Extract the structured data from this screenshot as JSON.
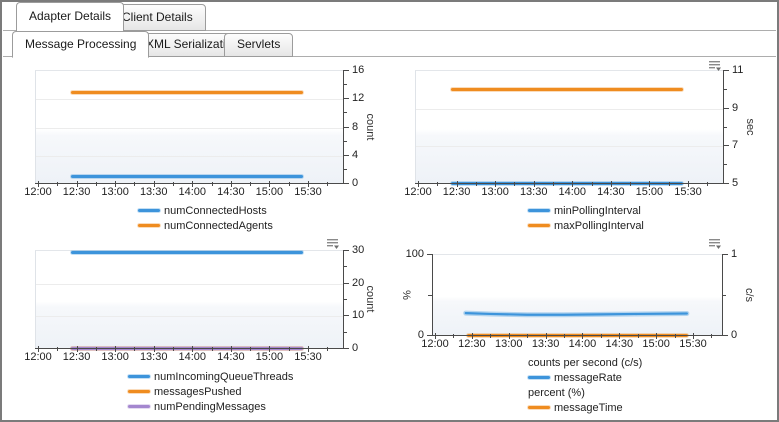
{
  "tabs_primary": {
    "items": [
      {
        "label": "Adapter Details",
        "active": true
      },
      {
        "label": "Client Details",
        "active": false
      }
    ]
  },
  "tabs_secondary": {
    "items": [
      {
        "label": "Message Processing",
        "active": true
      },
      {
        "label": "XML Serialization",
        "active": false
      },
      {
        "label": "Servlets",
        "active": false
      }
    ]
  },
  "colors": {
    "blue": "#3d94db",
    "orange": "#ef8c20",
    "purple": "#a487cf",
    "axis": "#4a4a4a",
    "grid": "#ececec"
  },
  "chart_data": [
    {
      "type": "line",
      "position": "top-left",
      "x_tick_labels": [
        "12:00",
        "12:30",
        "13:00",
        "13:30",
        "14:00",
        "14:30",
        "15:00",
        "15:30"
      ],
      "y_axis": {
        "label": "count",
        "side": "right",
        "min": 0,
        "max": 16,
        "major_ticks": [
          0,
          4,
          8,
          12,
          16
        ],
        "minor_ticks": [
          2,
          6,
          10,
          14
        ]
      },
      "series": [
        {
          "name": "numConnectedHosts",
          "color_key": "blue",
          "value": 1,
          "time_start": "12:25",
          "time_end": "15:25"
        },
        {
          "name": "numConnectedAgents",
          "color_key": "orange",
          "value": 13,
          "time_start": "12:25",
          "time_end": "15:25"
        }
      ],
      "has_options_icon": false
    },
    {
      "type": "line",
      "position": "top-right",
      "x_tick_labels": [
        "12:00",
        "12:30",
        "13:00",
        "13:30",
        "14:00",
        "14:30",
        "15:00",
        "15:30"
      ],
      "y_axis": {
        "label": "sec",
        "side": "right",
        "min": 5,
        "max": 11,
        "major_ticks": [
          5,
          7,
          9,
          11
        ],
        "minor_ticks": [
          6,
          8,
          10
        ]
      },
      "series": [
        {
          "name": "minPollingInterval",
          "color_key": "blue",
          "value": 5,
          "time_start": "12:25",
          "time_end": "15:25"
        },
        {
          "name": "maxPollingInterval",
          "color_key": "orange",
          "value": 10,
          "time_start": "12:25",
          "time_end": "15:25"
        }
      ],
      "has_options_icon": true
    },
    {
      "type": "line",
      "position": "bottom-left",
      "x_tick_labels": [
        "12:00",
        "12:30",
        "13:00",
        "13:30",
        "14:00",
        "14:30",
        "15:00",
        "15:30"
      ],
      "y_axis": {
        "label": "count",
        "side": "right",
        "min": 0,
        "max": 30,
        "major_ticks": [
          0,
          10,
          20,
          30
        ],
        "minor_ticks": [
          5,
          15,
          25
        ]
      },
      "series": [
        {
          "name": "numIncomingQueueThreads",
          "color_key": "blue",
          "value": 30,
          "time_start": "12:25",
          "time_end": "15:25"
        },
        {
          "name": "messagesPushed",
          "color_key": "orange",
          "value": 0,
          "time_start": "12:25",
          "time_end": "15:25"
        },
        {
          "name": "numPendingMessages",
          "color_key": "purple",
          "value": 0,
          "time_start": "12:25",
          "time_end": "15:25"
        }
      ],
      "has_options_icon": true
    },
    {
      "type": "line",
      "position": "bottom-right",
      "x_tick_labels": [
        "12:00",
        "12:30",
        "13:00",
        "13:30",
        "14:00",
        "14:30",
        "15:00",
        "15:30"
      ],
      "y_axis_left": {
        "label": "%",
        "min": 0,
        "max": 100,
        "major_ticks": [
          0,
          100
        ],
        "minor_ticks": [
          50
        ]
      },
      "y_axis_right": {
        "label": "c/s",
        "min": 0,
        "max": 1,
        "major_ticks": [
          0,
          1
        ],
        "minor_ticks": [
          0.5
        ]
      },
      "series": [
        {
          "name": "messageRate",
          "color_key": "blue",
          "axis": "right",
          "points": [
            [
              "12:25",
              0.27
            ],
            [
              "12:45",
              0.26
            ],
            [
              "13:15",
              0.25
            ],
            [
              "13:45",
              0.25
            ],
            [
              "14:15",
              0.255
            ],
            [
              "14:45",
              0.26
            ],
            [
              "15:25",
              0.265
            ]
          ]
        },
        {
          "name": "messageTime",
          "color_key": "orange",
          "axis": "left",
          "value": 0,
          "time_start": "12:25",
          "time_end": "15:25"
        }
      ],
      "legend": [
        {
          "group": "counts per second (c/s)"
        },
        {
          "series": "messageRate"
        },
        {
          "group": "percent (%)"
        },
        {
          "series": "messageTime"
        }
      ],
      "has_options_icon": true
    }
  ]
}
